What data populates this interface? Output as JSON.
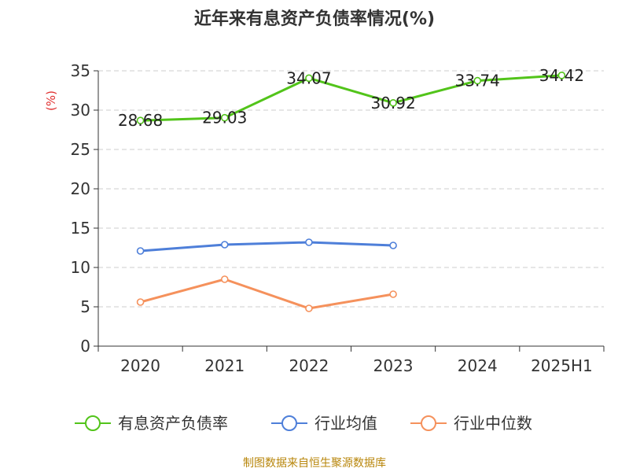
{
  "chart_data": {
    "type": "line",
    "title": "近年来有息资产负债率情况(%)",
    "ylabel": "(%)",
    "xlabel": "",
    "categories": [
      "2020",
      "2021",
      "2022",
      "2023",
      "2024",
      "2025H1"
    ],
    "ylim": [
      0,
      35
    ],
    "yticks": [
      "0",
      "5",
      "10",
      "15",
      "20",
      "25",
      "30",
      "35"
    ],
    "grid": true,
    "legend_position": "bottom",
    "series": [
      {
        "name": "有息资产负债率",
        "color": "#52c41a",
        "values": [
          28.68,
          29.03,
          34.07,
          30.92,
          33.74,
          34.42
        ],
        "labels": [
          "28.68",
          "29.03",
          "34.07",
          "30.92",
          "33.74",
          "34.42"
        ]
      },
      {
        "name": "行业均值",
        "color": "#4e7fd9",
        "values": [
          12.1,
          12.9,
          13.2,
          12.8,
          null,
          null
        ]
      },
      {
        "name": "行业中位数",
        "color": "#f5915c",
        "values": [
          5.6,
          8.5,
          4.8,
          6.6,
          null,
          null
        ]
      }
    ],
    "source": "制图数据来自恒生聚源数据库"
  }
}
